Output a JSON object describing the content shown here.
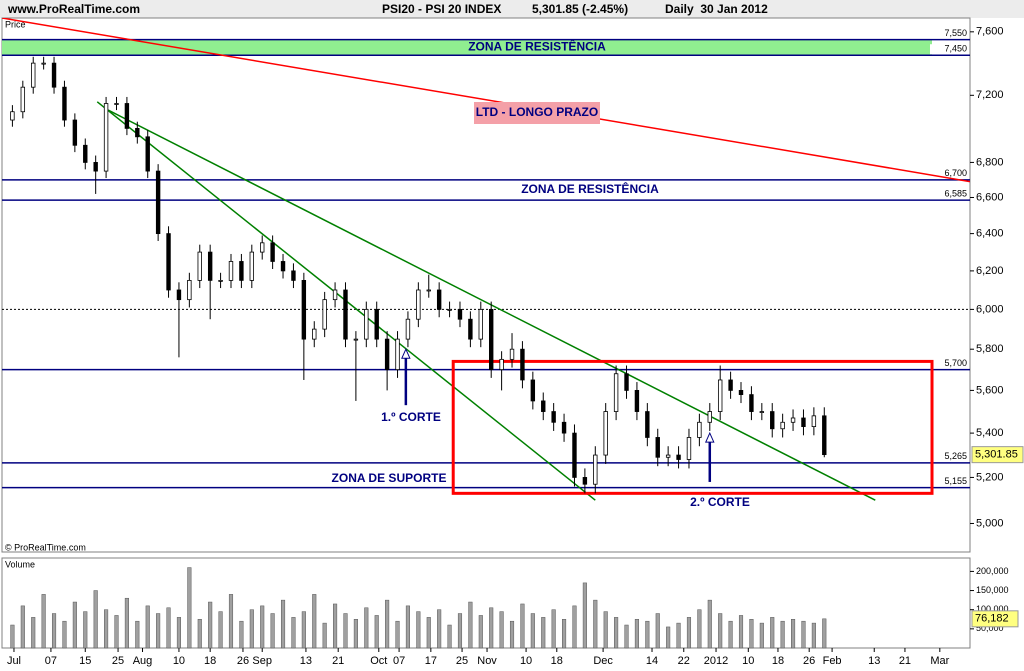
{
  "header": {
    "site": "www.ProRealTime.com",
    "instrument": "PSI20 - PSI 20 INDEX",
    "quote": "5,301.85 (-2.45%)",
    "period": "Daily  30 Jan 2012"
  },
  "chart_data": [
    {
      "type": "candlestick",
      "panel_label": "Price",
      "copyright": "© ProRealTime.com",
      "log_scale": true,
      "up_color": "#ffffff",
      "down_color": "#000000",
      "x": [
        2,
        4,
        6,
        8,
        10,
        12,
        14,
        16,
        18,
        20,
        22,
        24,
        26,
        28,
        30,
        32,
        34,
        36,
        38,
        40,
        42,
        44,
        46,
        48,
        50,
        52,
        54,
        56,
        58,
        60,
        62,
        64,
        66,
        68,
        70,
        72,
        74,
        76,
        78,
        80,
        82,
        84,
        86,
        88,
        90,
        92,
        94,
        96,
        98,
        100,
        102,
        104,
        106,
        108,
        110,
        112,
        114,
        116,
        118,
        120,
        122,
        124,
        126,
        128,
        130,
        132,
        134,
        136,
        138,
        140,
        142,
        144,
        146,
        148,
        150,
        152,
        154,
        156,
        158
      ],
      "open": [
        7050,
        7100,
        7250,
        7400,
        7400,
        7250,
        7050,
        6900,
        6800,
        6750,
        7150,
        7150,
        7000,
        6950,
        6750,
        6400,
        6100,
        6050,
        6150,
        6300,
        6150,
        6150,
        6250,
        6150,
        6300,
        6350,
        6250,
        6200,
        6150,
        5850,
        5900,
        6050,
        6100,
        5850,
        5850,
        6000,
        5850,
        5700,
        5850,
        5950,
        6100,
        6100,
        6000,
        6000,
        5950,
        5850,
        6000,
        5700,
        5750,
        5800,
        5650,
        5550,
        5500,
        5450,
        5400,
        5200,
        5170,
        5300,
        5500,
        5680,
        5600,
        5500,
        5380,
        5290,
        5300,
        5280,
        5380,
        5450,
        5500,
        5650,
        5600,
        5580,
        5500,
        5500,
        5420,
        5450,
        5470,
        5430,
        5480
      ],
      "high": [
        7140,
        7290,
        7440,
        7440,
        7440,
        7290,
        7090,
        6940,
        6840,
        7190,
        7190,
        7190,
        7040,
        6990,
        6790,
        6440,
        6140,
        6190,
        6340,
        6340,
        6190,
        6290,
        6290,
        6340,
        6390,
        6390,
        6290,
        6240,
        6190,
        5940,
        6090,
        6140,
        6140,
        5890,
        6040,
        6040,
        5890,
        5890,
        5990,
        6140,
        6180,
        6140,
        6040,
        6040,
        5990,
        6040,
        6040,
        5790,
        5880,
        5840,
        5690,
        5590,
        5540,
        5490,
        5440,
        5240,
        5340,
        5540,
        5720,
        5720,
        5640,
        5540,
        5420,
        5340,
        5340,
        5420,
        5490,
        5540,
        5720,
        5690,
        5640,
        5620,
        5540,
        5540,
        5490,
        5510,
        5510,
        5520,
        5520
      ],
      "low": [
        7010,
        7060,
        7210,
        7360,
        7210,
        7010,
        6860,
        6760,
        6620,
        6710,
        7110,
        6960,
        6910,
        6710,
        6360,
        6060,
        5760,
        6010,
        6110,
        5950,
        6110,
        6110,
        6110,
        6110,
        6260,
        6210,
        6160,
        6110,
        5650,
        5810,
        5860,
        6010,
        5810,
        5550,
        5810,
        5810,
        5600,
        5660,
        5810,
        5910,
        6060,
        5960,
        5960,
        5910,
        5810,
        5810,
        5660,
        5600,
        5710,
        5610,
        5510,
        5460,
        5410,
        5360,
        5160,
        5130,
        5130,
        5260,
        5460,
        5560,
        5460,
        5340,
        5250,
        5250,
        5240,
        5240,
        5340,
        5410,
        5460,
        5560,
        5540,
        5460,
        5460,
        5380,
        5380,
        5410,
        5390,
        5390,
        5290
      ],
      "close": [
        7100,
        7250,
        7400,
        7400,
        7250,
        7050,
        6900,
        6800,
        6750,
        7150,
        7150,
        7000,
        6950,
        6750,
        6400,
        6100,
        6050,
        6150,
        6300,
        6150,
        6150,
        6250,
        6150,
        6300,
        6350,
        6250,
        6200,
        6150,
        5850,
        5900,
        6050,
        6100,
        5850,
        5850,
        6000,
        5850,
        5700,
        5850,
        5950,
        6100,
        6100,
        6000,
        6000,
        5950,
        5850,
        6000,
        5700,
        5750,
        5800,
        5650,
        5550,
        5500,
        5450,
        5400,
        5200,
        5170,
        5300,
        5500,
        5680,
        5600,
        5500,
        5380,
        5290,
        5300,
        5280,
        5380,
        5450,
        5500,
        5650,
        5600,
        5580,
        5500,
        5500,
        5420,
        5450,
        5470,
        5430,
        5480,
        5302
      ],
      "ylim": [
        4880,
        7690
      ],
      "yticks": [
        {
          "value": 5000,
          "label": "5,000"
        },
        {
          "value": 5200,
          "label": "5,200"
        },
        {
          "value": 5400,
          "label": "5,400"
        },
        {
          "value": 5600,
          "label": "5,600"
        },
        {
          "value": 5800,
          "label": "5,800"
        },
        {
          "value": 6000,
          "label": "6,000"
        },
        {
          "value": 6200,
          "label": "6,200"
        },
        {
          "value": 6400,
          "label": "6,400"
        },
        {
          "value": 6600,
          "label": "6,600"
        },
        {
          "value": 6800,
          "label": "6,800"
        },
        {
          "value": 7200,
          "label": "7,200"
        },
        {
          "value": 7600,
          "label": "7,600"
        }
      ],
      "levels": [
        {
          "value": 7550,
          "label": "7,550"
        },
        {
          "value": 7450,
          "label": "7,450"
        },
        {
          "value": 6700,
          "label": "6,700"
        },
        {
          "value": 6585,
          "label": "6,585"
        },
        {
          "value": 5700,
          "label": "5,700"
        },
        {
          "value": 5265,
          "label": "5,265"
        },
        {
          "value": 5155,
          "label": "5,155"
        }
      ],
      "level_color": "#000080",
      "reference_line": 6000,
      "zone": {
        "label": "ZONA DE RESISTÊNCIA",
        "range": [
          7450,
          7550
        ],
        "color": "#90ee90"
      },
      "annotations": [
        "ZONA DE RESISTÊNCIA",
        "ZONA DE SUPORTE",
        "LTD - LONGO PRAZO",
        "1.º CORTE",
        "2.º CORTE"
      ],
      "trendlines": [
        {
          "color": "#ff0000",
          "x": [
            0,
            186
          ],
          "y": [
            7690,
            6690
          ]
        },
        {
          "color": "#008000",
          "x": [
            18.3,
            114
          ],
          "y": [
            7160,
            5100
          ]
        },
        {
          "color": "#008000",
          "x": [
            20.4,
            167.8
          ],
          "y": [
            7110,
            5100
          ]
        }
      ],
      "box": {
        "color": "#ff0000",
        "x": [
          86.7,
          178.7
        ],
        "y": [
          5130,
          5740
        ]
      },
      "arrows": [
        {
          "x": 77.6,
          "y": [
            5530,
            5800
          ]
        },
        {
          "x": 136,
          "y": [
            5180,
            5400
          ]
        }
      ],
      "last_value": {
        "value": 5301.85,
        "label": "5,301.85"
      }
    },
    {
      "type": "bar",
      "panel_label": "Volume",
      "color": "#a0a0a0",
      "x": [
        2,
        4,
        6,
        8,
        10,
        12,
        14,
        16,
        18,
        20,
        22,
        24,
        26,
        28,
        30,
        32,
        34,
        36,
        38,
        40,
        42,
        44,
        46,
        48,
        50,
        52,
        54,
        56,
        58,
        60,
        62,
        64,
        66,
        68,
        70,
        72,
        74,
        76,
        78,
        80,
        82,
        84,
        86,
        88,
        90,
        92,
        94,
        96,
        98,
        100,
        102,
        104,
        106,
        108,
        110,
        112,
        114,
        116,
        118,
        120,
        122,
        124,
        126,
        128,
        130,
        132,
        134,
        136,
        138,
        140,
        142,
        144,
        146,
        148,
        150,
        152,
        154,
        156,
        158
      ],
      "values": [
        60000,
        110000,
        80000,
        140000,
        90000,
        70000,
        120000,
        95000,
        150000,
        100000,
        85000,
        130000,
        70000,
        110000,
        90000,
        105000,
        80000,
        210000,
        75000,
        120000,
        95000,
        140000,
        70000,
        100000,
        110000,
        90000,
        125000,
        80000,
        95000,
        140000,
        65000,
        115000,
        90000,
        75000,
        105000,
        85000,
        125000,
        70000,
        110000,
        95000,
        80000,
        100000,
        60000,
        90000,
        120000,
        85000,
        105000,
        95000,
        70000,
        115000,
        90000,
        80000,
        100000,
        75000,
        110000,
        170000,
        125000,
        95000,
        80000,
        60000,
        75000,
        70000,
        90000,
        55000,
        65000,
        80000,
        100000,
        125000,
        90000,
        70000,
        85000,
        75000,
        65000,
        80000,
        70000,
        75000,
        70000,
        65000,
        76182
      ],
      "ylim": [
        0,
        235000
      ],
      "yticks": [
        {
          "value": 50000,
          "label": "50,000"
        },
        {
          "value": 100000,
          "label": "100,000"
        },
        {
          "value": 150000,
          "label": "150,000"
        },
        {
          "value": 200000,
          "label": "200,000"
        }
      ],
      "last_value": {
        "value": 76182,
        "label": "76,182"
      },
      "xlim": [
        0,
        186
      ],
      "xticks": [
        {
          "value": 2.3,
          "label": "Jul"
        },
        {
          "value": 9.4,
          "label": "07"
        },
        {
          "value": 16,
          "label": "15"
        },
        {
          "value": 22.3,
          "label": "25"
        },
        {
          "value": 27,
          "label": "Aug"
        },
        {
          "value": 34,
          "label": "10"
        },
        {
          "value": 40,
          "label": "18"
        },
        {
          "value": 46.3,
          "label": "26"
        },
        {
          "value": 50,
          "label": "Sep"
        },
        {
          "value": 58.4,
          "label": "13"
        },
        {
          "value": 64.6,
          "label": "21"
        },
        {
          "value": 72.4,
          "label": "Oct"
        },
        {
          "value": 76.3,
          "label": "07"
        },
        {
          "value": 82.4,
          "label": "17"
        },
        {
          "value": 88.4,
          "label": "25"
        },
        {
          "value": 93.2,
          "label": "Nov"
        },
        {
          "value": 100.7,
          "label": "10"
        },
        {
          "value": 106.6,
          "label": "18"
        },
        {
          "value": 115.5,
          "label": "Dec"
        },
        {
          "value": 124.9,
          "label": "14"
        },
        {
          "value": 131,
          "label": "22"
        },
        {
          "value": 137.2,
          "label": "2012"
        },
        {
          "value": 143.4,
          "label": "10"
        },
        {
          "value": 149.1,
          "label": "18"
        },
        {
          "value": 155.1,
          "label": "26"
        },
        {
          "value": 159.5,
          "label": "Feb"
        },
        {
          "value": 167.6,
          "label": "13"
        },
        {
          "value": 173.5,
          "label": "21"
        },
        {
          "value": 180.2,
          "label": "Mar"
        }
      ]
    }
  ]
}
